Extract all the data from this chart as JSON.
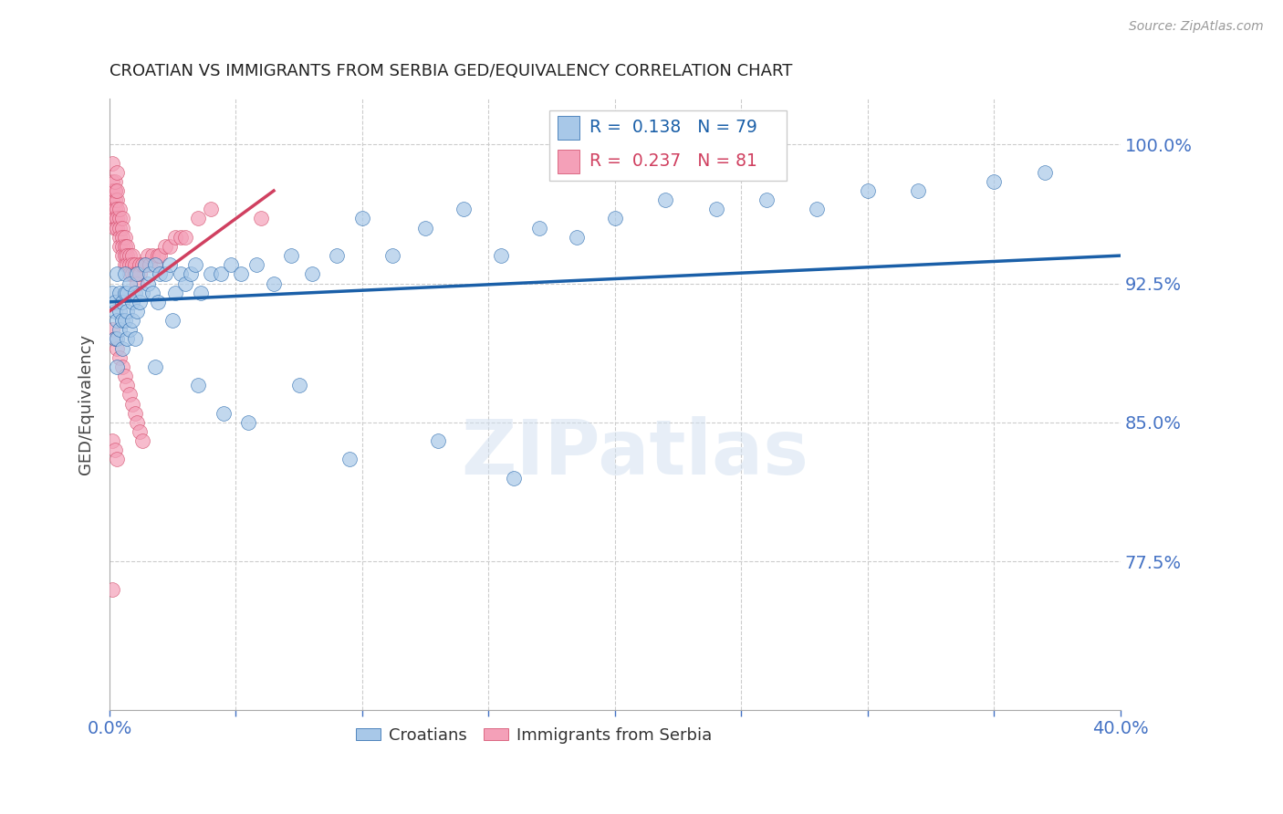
{
  "title": "CROATIAN VS IMMIGRANTS FROM SERBIA GED/EQUIVALENCY CORRELATION CHART",
  "source": "Source: ZipAtlas.com",
  "ylabel": "GED/Equivalency",
  "xlim": [
    0.0,
    0.4
  ],
  "ylim": [
    0.695,
    1.025
  ],
  "yticks_right": [
    0.775,
    0.85,
    0.925,
    1.0
  ],
  "ytick_right_labels": [
    "77.5%",
    "85.0%",
    "92.5%",
    "100.0%"
  ],
  "blue_color": "#a8c8e8",
  "pink_color": "#f4a0b8",
  "trend_blue": "#1a5fa8",
  "trend_pink": "#d04060",
  "axis_color": "#4472c4",
  "watermark": "ZIPatlas",
  "croatians_x": [
    0.001,
    0.002,
    0.002,
    0.002,
    0.003,
    0.003,
    0.003,
    0.003,
    0.004,
    0.004,
    0.004,
    0.005,
    0.005,
    0.005,
    0.006,
    0.006,
    0.006,
    0.007,
    0.007,
    0.007,
    0.008,
    0.008,
    0.009,
    0.009,
    0.01,
    0.01,
    0.011,
    0.011,
    0.012,
    0.013,
    0.014,
    0.015,
    0.016,
    0.017,
    0.018,
    0.019,
    0.02,
    0.022,
    0.024,
    0.026,
    0.028,
    0.03,
    0.032,
    0.034,
    0.036,
    0.04,
    0.044,
    0.048,
    0.052,
    0.058,
    0.065,
    0.072,
    0.08,
    0.09,
    0.1,
    0.112,
    0.125,
    0.14,
    0.155,
    0.17,
    0.185,
    0.2,
    0.22,
    0.24,
    0.26,
    0.28,
    0.3,
    0.32,
    0.35,
    0.37,
    0.018,
    0.025,
    0.035,
    0.045,
    0.055,
    0.075,
    0.095,
    0.13,
    0.16
  ],
  "croatians_y": [
    0.92,
    0.91,
    0.915,
    0.895,
    0.905,
    0.88,
    0.93,
    0.895,
    0.91,
    0.9,
    0.92,
    0.915,
    0.905,
    0.89,
    0.92,
    0.905,
    0.93,
    0.895,
    0.92,
    0.91,
    0.925,
    0.9,
    0.915,
    0.905,
    0.92,
    0.895,
    0.93,
    0.91,
    0.915,
    0.92,
    0.935,
    0.925,
    0.93,
    0.92,
    0.935,
    0.915,
    0.93,
    0.93,
    0.935,
    0.92,
    0.93,
    0.925,
    0.93,
    0.935,
    0.92,
    0.93,
    0.93,
    0.935,
    0.93,
    0.935,
    0.925,
    0.94,
    0.93,
    0.94,
    0.96,
    0.94,
    0.955,
    0.965,
    0.94,
    0.955,
    0.95,
    0.96,
    0.97,
    0.965,
    0.97,
    0.965,
    0.975,
    0.975,
    0.98,
    0.985,
    0.88,
    0.905,
    0.87,
    0.855,
    0.85,
    0.87,
    0.83,
    0.84,
    0.82
  ],
  "serbia_x": [
    0.001,
    0.001,
    0.001,
    0.001,
    0.001,
    0.001,
    0.002,
    0.002,
    0.002,
    0.002,
    0.002,
    0.002,
    0.002,
    0.003,
    0.003,
    0.003,
    0.003,
    0.003,
    0.003,
    0.004,
    0.004,
    0.004,
    0.004,
    0.004,
    0.005,
    0.005,
    0.005,
    0.005,
    0.005,
    0.006,
    0.006,
    0.006,
    0.006,
    0.007,
    0.007,
    0.007,
    0.008,
    0.008,
    0.008,
    0.009,
    0.009,
    0.009,
    0.01,
    0.01,
    0.011,
    0.011,
    0.012,
    0.012,
    0.013,
    0.014,
    0.015,
    0.016,
    0.017,
    0.018,
    0.019,
    0.02,
    0.022,
    0.024,
    0.026,
    0.028,
    0.03,
    0.035,
    0.04,
    0.001,
    0.002,
    0.003,
    0.004,
    0.005,
    0.006,
    0.007,
    0.008,
    0.009,
    0.01,
    0.011,
    0.012,
    0.013,
    0.06,
    0.001,
    0.002,
    0.003,
    0.001
  ],
  "serbia_y": [
    0.98,
    0.975,
    0.97,
    0.965,
    0.96,
    0.99,
    0.975,
    0.97,
    0.965,
    0.96,
    0.955,
    0.975,
    0.98,
    0.97,
    0.965,
    0.96,
    0.955,
    0.975,
    0.985,
    0.96,
    0.955,
    0.95,
    0.945,
    0.965,
    0.96,
    0.955,
    0.95,
    0.945,
    0.94,
    0.95,
    0.945,
    0.94,
    0.935,
    0.945,
    0.94,
    0.935,
    0.94,
    0.935,
    0.93,
    0.94,
    0.935,
    0.93,
    0.935,
    0.93,
    0.93,
    0.925,
    0.935,
    0.93,
    0.935,
    0.935,
    0.94,
    0.935,
    0.94,
    0.935,
    0.94,
    0.94,
    0.945,
    0.945,
    0.95,
    0.95,
    0.95,
    0.96,
    0.965,
    0.9,
    0.895,
    0.89,
    0.885,
    0.88,
    0.875,
    0.87,
    0.865,
    0.86,
    0.855,
    0.85,
    0.845,
    0.84,
    0.96,
    0.84,
    0.835,
    0.83,
    0.76
  ]
}
